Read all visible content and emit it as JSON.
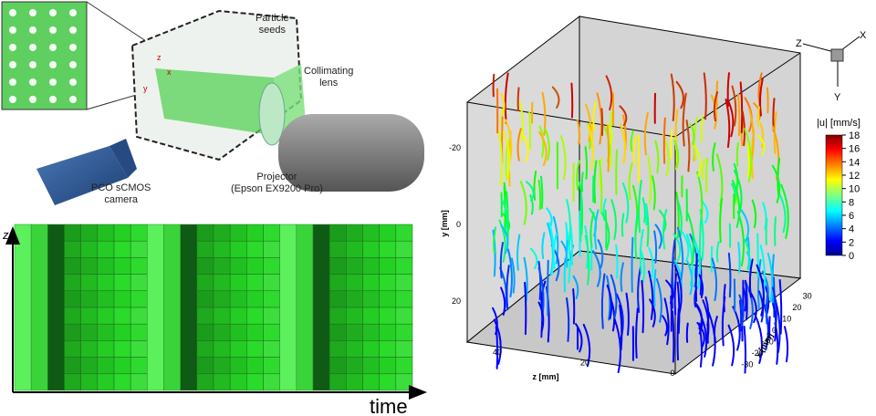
{
  "setup": {
    "labels": [
      "Particle\nseeds",
      "Collimating\nlens",
      "Projector\n(Epson EX9200 Pro)",
      "PCO sCMOS\ncamera"
    ],
    "axes": [
      "z",
      "x",
      "y"
    ]
  },
  "pattern": {
    "y_axis": "z",
    "x_axis": "time"
  },
  "plot": {
    "y_axis": {
      "label": "y [mm]",
      "ticks": [
        -20,
        0,
        20
      ]
    },
    "z_axis": {
      "label": "z [mm]",
      "ticks": [
        40,
        20,
        0
      ]
    },
    "x_axis": {
      "label": "x [mm]",
      "ticks": [
        30,
        20,
        10,
        0,
        -10,
        -20,
        -30
      ]
    },
    "orientation": [
      "Z",
      "X",
      "Y"
    ],
    "colorbar": {
      "label": "|u| [mm/s]",
      "ticks": [
        18,
        16,
        14,
        12,
        10,
        8,
        6,
        4,
        2,
        0
      ]
    }
  }
}
